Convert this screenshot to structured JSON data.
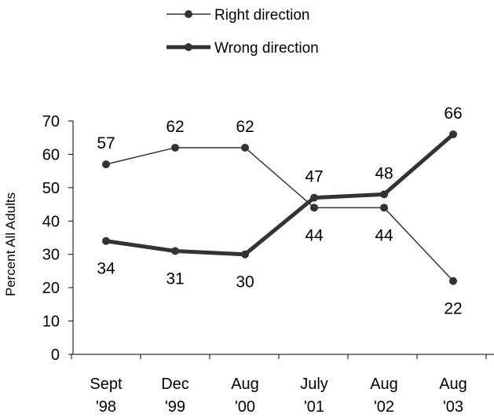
{
  "chart_data": {
    "type": "line",
    "categories": [
      [
        "Sept",
        "'98"
      ],
      [
        "Dec",
        "'99"
      ],
      [
        "Aug",
        "'00"
      ],
      [
        "July",
        "'01"
      ],
      [
        "Aug",
        "'02"
      ],
      [
        "Aug",
        "'03"
      ]
    ],
    "series": [
      {
        "name": "Right direction",
        "values": [
          57,
          62,
          62,
          44,
          44,
          22
        ],
        "line": "thin"
      },
      {
        "name": "Wrong direction",
        "values": [
          34,
          31,
          30,
          47,
          48,
          66
        ],
        "line": "thick"
      }
    ],
    "ylabel": "Percent All Adults",
    "ylim": [
      0,
      70
    ],
    "yticks": [
      0,
      10,
      20,
      30,
      40,
      50,
      60,
      70
    ],
    "legend": "top-center",
    "grid": false,
    "colors": {
      "line": "#333333",
      "marker": "#333333",
      "axis": "#000000"
    }
  }
}
